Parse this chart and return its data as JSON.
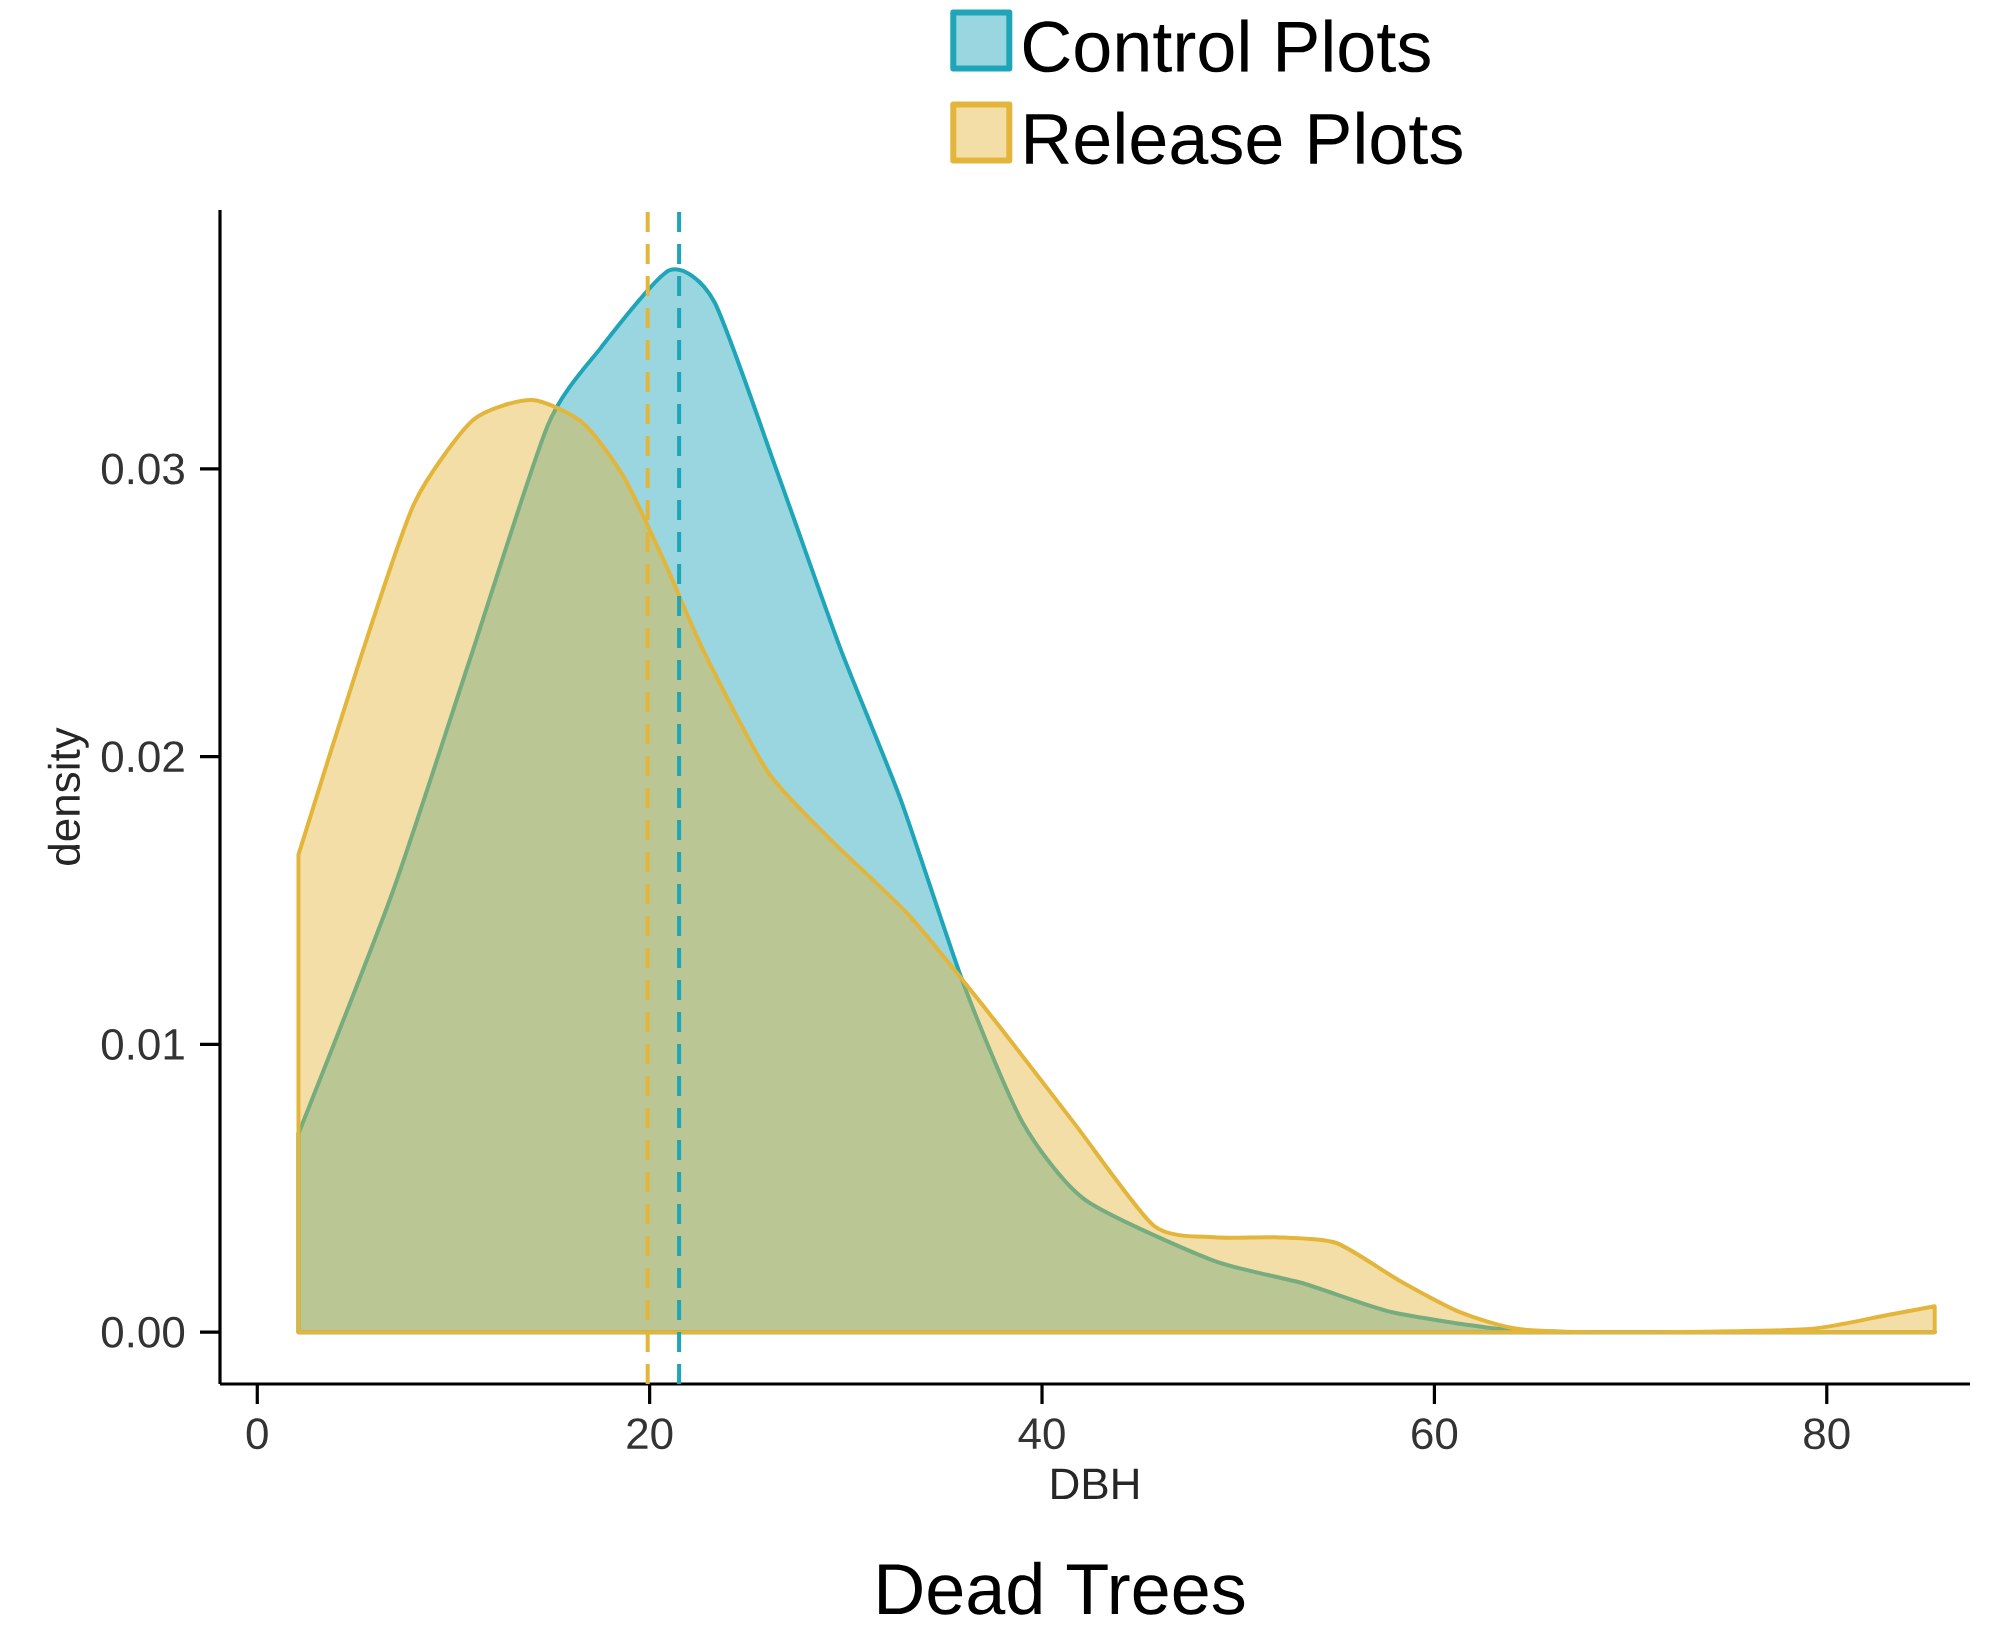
{
  "chart_data": {
    "type": "area",
    "title": "Dead Trees",
    "xlabel": "DBH",
    "ylabel": "density",
    "series": [
      {
        "name": "Control Plots",
        "color": "#1fa5b8",
        "x": [
          2.1,
          6.9,
          10.8,
          14.8,
          17.5,
          21.0,
          23.3,
          26.5,
          29.7,
          32.8,
          36.0,
          39.0,
          42.2,
          48.7,
          53.3,
          57.8,
          63.5,
          68.4,
          85.5
        ],
        "values": [
          0.0069,
          0.0153,
          0.0233,
          0.0315,
          0.0342,
          0.0369,
          0.0358,
          0.0299,
          0.0238,
          0.0185,
          0.0121,
          0.0073,
          0.0046,
          0.0025,
          0.0017,
          0.0007,
          0.0001,
          0.0,
          0.0
        ]
      },
      {
        "name": "Release Plots",
        "color": "#e3b53a",
        "x": [
          2.1,
          5.2,
          8.0,
          11.0,
          14.0,
          16.6,
          18.7,
          20.8,
          22.8,
          26.0,
          29.1,
          33.2,
          37.4,
          41.6,
          45.7,
          48.8,
          51.9,
          55.0,
          58.2,
          61.3,
          64.4,
          70.0,
          78.9,
          83.1,
          85.5
        ],
        "values": [
          0.0166,
          0.0233,
          0.0288,
          0.0317,
          0.0324,
          0.0316,
          0.0297,
          0.0267,
          0.0236,
          0.0195,
          0.0172,
          0.0145,
          0.011,
          0.0073,
          0.0037,
          0.0033,
          0.0033,
          0.0031,
          0.0018,
          0.0007,
          0.0001,
          0.0,
          0.0001,
          0.0006,
          0.0009
        ]
      }
    ],
    "ref_lines": [
      {
        "axis": "x",
        "value": 19.9,
        "color": "#e3b53a",
        "line_style": "dashed"
      },
      {
        "axis": "x",
        "value": 21.5,
        "color": "#1fa5b8",
        "line_style": "dashed"
      }
    ],
    "xlim": [
      -1.9,
      87.3
    ],
    "ylim": [
      -0.0018,
      0.039
    ],
    "xticks": [
      0,
      20,
      40,
      60,
      80
    ],
    "yticks": [
      {
        "value": 0,
        "label": "0.00"
      },
      {
        "value": 0.01,
        "label": "0.01"
      },
      {
        "value": 0.02,
        "label": "0.02"
      },
      {
        "value": 0.03,
        "label": "0.03"
      }
    ],
    "legend": "top",
    "grid": false,
    "marker": "none"
  }
}
